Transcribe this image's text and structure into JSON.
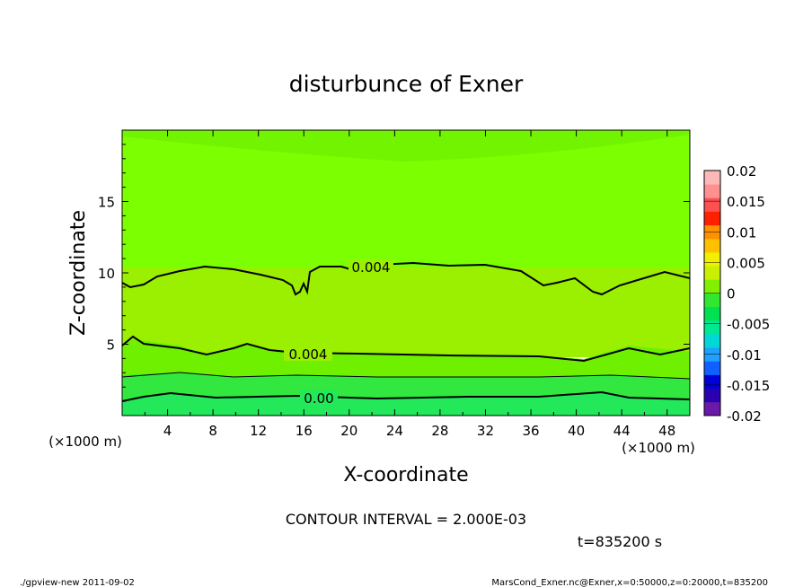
{
  "chart_data": {
    "type": "heatmap",
    "title": "disturbunce of Exner",
    "xlabel": "X-coordinate",
    "ylabel": "Z-coordinate",
    "x_unit_left": "(×1000 m)",
    "x_unit_right": "(×1000 m)",
    "xlim": [
      0,
      50
    ],
    "ylim": [
      0,
      20
    ],
    "x_ticks": [
      4,
      8,
      12,
      16,
      20,
      24,
      28,
      32,
      36,
      40,
      44,
      48
    ],
    "y_ticks": [
      5,
      10,
      15
    ],
    "contour_interval_text": "CONTOUR INTERVAL = 2.000E-03",
    "time_text": "t=835200 s",
    "footer_left": "./gpview-new  2011-09-02",
    "footer_right": "MarsCond_Exner.nc@Exner,x=0:50000,z=0:20000,t=835200",
    "colorbar": {
      "levels": [
        -0.02,
        -0.015,
        -0.01,
        -0.005,
        0,
        0.005,
        0.01,
        0.015,
        0.02
      ],
      "labels": [
        "0.02",
        "0.015",
        "0.01",
        "0.005",
        "0",
        "-0.005",
        "-0.01",
        "-0.015",
        "-0.02"
      ],
      "colors": [
        "#6a1aa8",
        "#2a00b0",
        "#0000d8",
        "#1060ff",
        "#20a0ff",
        "#00d8d8",
        "#00e890",
        "#00e050",
        "#30e830",
        "#80f000",
        "#c8f000",
        "#f0f000",
        "#ffc000",
        "#ff9000",
        "#ff2000",
        "#ff5050",
        "#ff9090",
        "#ffb8b8"
      ]
    },
    "contour_labels": [
      {
        "text": "0.004",
        "x": 20.5,
        "z": 10.3
      },
      {
        "text": "0.004",
        "x": 16.2,
        "z": 4.3
      },
      {
        "text": "0.00",
        "x": 16.6,
        "z": 1.1
      }
    ],
    "regions": [
      {
        "name": "upper",
        "z_range": [
          10,
          20
        ],
        "color": "#7cff00"
      },
      {
        "name": "middle",
        "z_range": [
          4.2,
          10
        ],
        "color": "#9ef000"
      },
      {
        "name": "lower",
        "z_range": [
          2.7,
          4.2
        ],
        "color": "#6cf000"
      },
      {
        "name": "bottom",
        "z_range": [
          1.2,
          2.7
        ],
        "color": "#30e83a"
      },
      {
        "name": "base",
        "z_range": [
          0,
          1.2
        ],
        "color": "#22e85a"
      }
    ]
  }
}
